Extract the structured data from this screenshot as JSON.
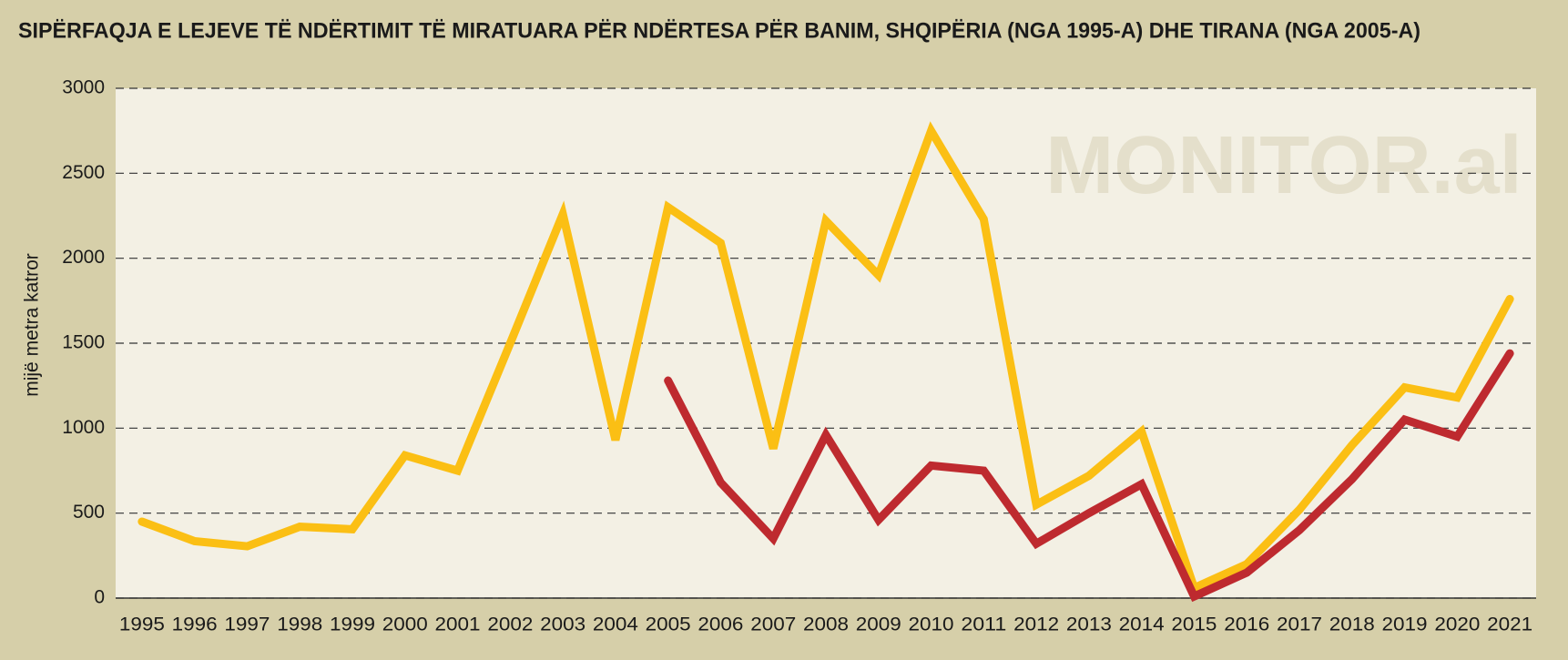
{
  "chart_data": {
    "type": "line",
    "title": "SIPËRFAQJA E LEJEVE TË NDËRTIMIT TË MIRATUARA PËR NDËRTESA PËR BANIM, SHQIPËRIA (NGA 1995-A) DHE TIRANA (NGA 2005-A)",
    "y_label": "mijë metra katror",
    "watermark": "MONITOR.al",
    "categories": [
      "1995",
      "1996",
      "1997",
      "1998",
      "1999",
      "2000",
      "2001",
      "2002",
      "2003",
      "2004",
      "2005",
      "2006",
      "2007",
      "2008",
      "2009",
      "2010",
      "2011",
      "2012",
      "2013",
      "2014",
      "2015",
      "2016",
      "2017",
      "2018",
      "2019",
      "2020",
      "2021"
    ],
    "series": [
      {
        "color": "#fbbf14",
        "values": [
          450,
          335,
          305,
          420,
          405,
          840,
          750,
          1500,
          2260,
          930,
          2300,
          2090,
          880,
          2220,
          1900,
          2750,
          2230,
          550,
          720,
          980,
          60,
          200,
          520,
          900,
          1240,
          1180,
          1760
        ]
      },
      {
        "color": "#be2a2f",
        "values": [
          null,
          null,
          null,
          null,
          null,
          null,
          null,
          null,
          null,
          null,
          1280,
          680,
          350,
          960,
          460,
          780,
          750,
          320,
          500,
          670,
          10,
          150,
          400,
          700,
          1050,
          950,
          1440
        ]
      }
    ],
    "ylim": [
      0,
      3000
    ],
    "yticks": [
      0,
      500,
      1000,
      1500,
      2000,
      2500,
      3000
    ],
    "grid": true
  }
}
